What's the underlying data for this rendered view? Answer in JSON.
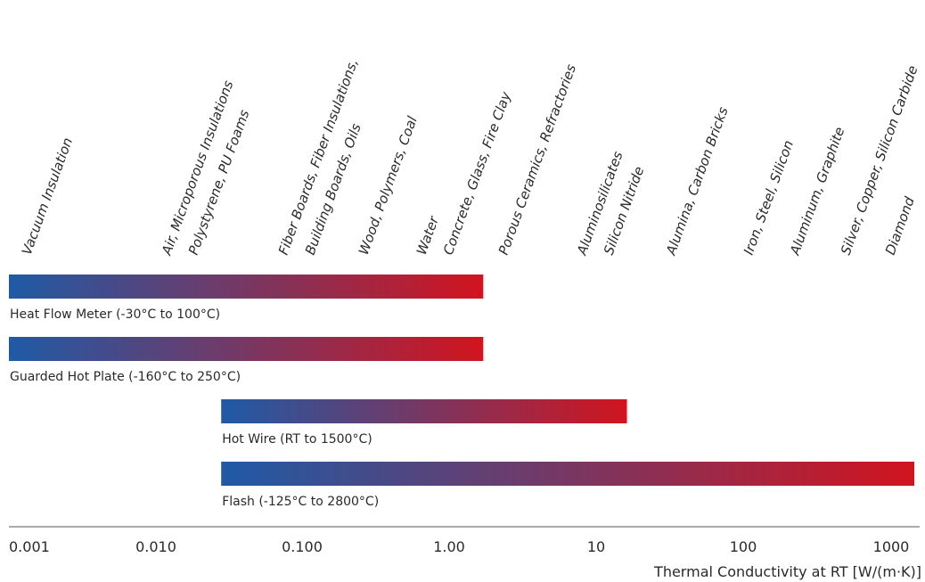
{
  "colors": {
    "start": "#1f5aa6",
    "end": "#d1141f",
    "axis": "#555555",
    "text": "#2a2a2a"
  },
  "chart_data": {
    "type": "bar",
    "orientation": "horizontal-range",
    "scale": "log",
    "xlim": [
      0.001,
      2000
    ],
    "xlabel": "Thermal Conductivity at RT [W/(m·K)]",
    "ticks": [
      {
        "value": 0.001,
        "label": "0.001"
      },
      {
        "value": 0.01,
        "label": "0.010"
      },
      {
        "value": 0.1,
        "label": "0.100"
      },
      {
        "value": 1,
        "label": "1.00"
      },
      {
        "value": 10,
        "label": "10"
      },
      {
        "value": 100,
        "label": "100"
      },
      {
        "value": 1000,
        "label": "1000"
      }
    ],
    "ranges": [
      {
        "name": "Heat Flow Meter (-30°C to 100°C)",
        "from": 0.001,
        "to": 2
      },
      {
        "name": "Guarded Hot Plate (-160°C to 250°C)",
        "from": 0.001,
        "to": 2
      },
      {
        "name": "Hot Wire (RT to 1500°C)",
        "from": 0.03,
        "to": 20
      },
      {
        "name": "Flash (-125°C to 2800°C)",
        "from": 0.03,
        "to": 2000
      }
    ],
    "materials": [
      {
        "value": 0.0012,
        "lines": [
          "Vacuum Insulation"
        ]
      },
      {
        "value": 0.025,
        "lines": [
          "Air, Microporous Insulations",
          "Polystyrene, PU Foams"
        ]
      },
      {
        "value": 0.1,
        "lines": [
          "Fiber Boards, Fiber Insulations,",
          "Building Boards, Oils"
        ]
      },
      {
        "value": 0.35,
        "lines": [
          "Wood, Polymers, Coal"
        ]
      },
      {
        "value": 0.85,
        "lines": [
          "Water",
          "Concrete, Glass, Fire Clay"
        ]
      },
      {
        "value": 2.5,
        "lines": [
          "Porous Ceramics, Refractories"
        ]
      },
      {
        "value": 7,
        "lines": [
          "Aluminosilicates",
          "Silicon Nitride"
        ]
      },
      {
        "value": 25,
        "lines": [
          "Alumina, Carbon Bricks"
        ]
      },
      {
        "value": 70,
        "lines": [
          "Iron, Steel, Silicon"
        ]
      },
      {
        "value": 200,
        "lines": [
          "Aluminum, Graphite"
        ]
      },
      {
        "value": 400,
        "lines": [
          "Silver, Copper, Silicon Carbide"
        ]
      },
      {
        "value": 1000,
        "lines": [
          "Diamond"
        ]
      }
    ]
  }
}
